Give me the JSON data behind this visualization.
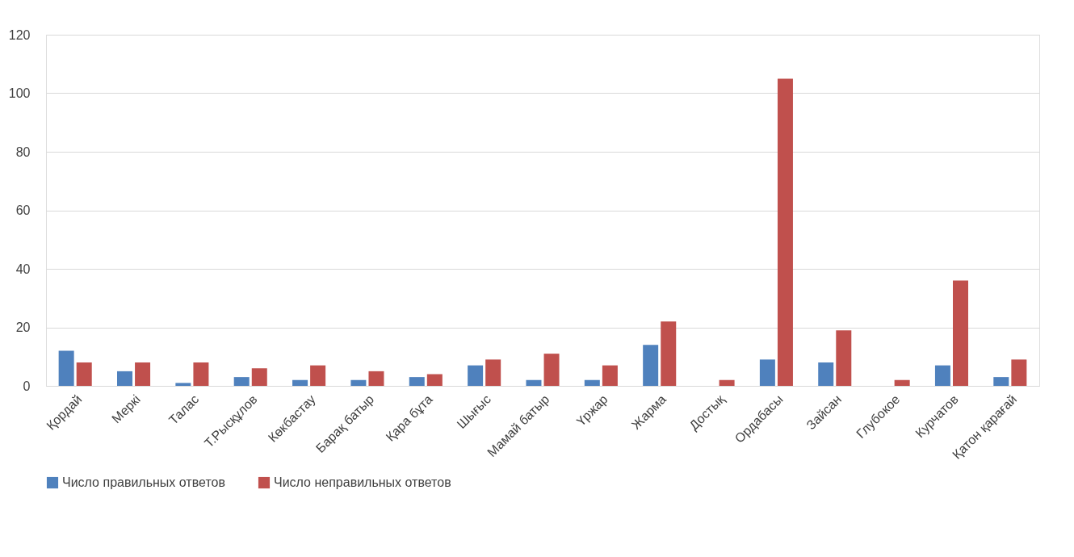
{
  "chart_data": {
    "type": "bar",
    "categories": [
      "Қордай",
      "Меркі",
      "Талас",
      "Т.Рысқұлов",
      "Көкбастау",
      "Барақ батыр",
      "Қара бұта",
      "Шығыс",
      "Мамай батыр",
      "Үржар",
      "Жарма",
      "Достық",
      "Ордабасы",
      "Зайсан",
      "Глубокое",
      "Курчатов",
      "Қатон қарағай"
    ],
    "series": [
      {
        "name": "Число правильных ответов",
        "color": "#4f81bd",
        "values": [
          12,
          5,
          1,
          3,
          2,
          2,
          3,
          7,
          2,
          2,
          14,
          null,
          9,
          8,
          null,
          7,
          3
        ]
      },
      {
        "name": "Число неправильных ответов",
        "color": "#c0504d",
        "values": [
          8,
          8,
          8,
          6,
          7,
          5,
          4,
          9,
          11,
          7,
          22,
          2,
          105,
          19,
          2,
          36,
          9
        ]
      }
    ],
    "ylim": [
      0,
      120
    ],
    "yticks": [
      0,
      20,
      40,
      60,
      80,
      100,
      120
    ],
    "grid": "y",
    "legend": "bottom"
  }
}
